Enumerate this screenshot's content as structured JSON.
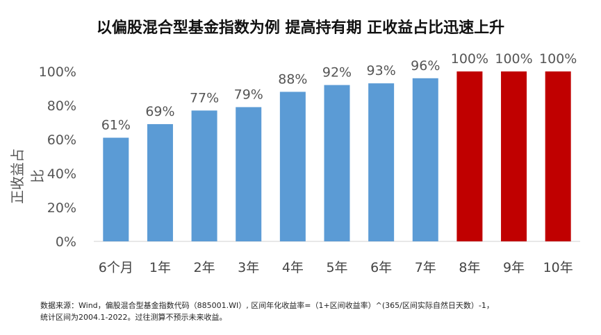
{
  "chart_data": {
    "type": "bar",
    "title": "以偏股混合型基金指数为例 提高持有期 正收益占比迅速上升",
    "xlabel": "",
    "ylabel": "正收益占比",
    "ylim": [
      0,
      100
    ],
    "yticks": [
      "0%",
      "20%",
      "40%",
      "60%",
      "80%",
      "100%"
    ],
    "grid": false,
    "categories": [
      "6个月",
      "1年",
      "2年",
      "3年",
      "4年",
      "5年",
      "6年",
      "7年",
      "8年",
      "9年",
      "10年"
    ],
    "values": [
      61,
      69,
      77,
      79,
      88,
      92,
      93,
      96,
      100,
      100,
      100
    ],
    "data_labels": [
      "61%",
      "69%",
      "77%",
      "79%",
      "88%",
      "92%",
      "93%",
      "96%",
      "100%",
      "100%",
      "100%"
    ],
    "colors": {
      "default": "#5b9bd5",
      "highlight": "#c00000"
    },
    "highlight_categories": [
      "8年",
      "9年",
      "10年"
    ]
  },
  "footnote": [
    "数据来源：Wind，偏股混合型基金指数代码（885001.WI）, 区间年化收益率=（1+区间收益率）^(365/区间实际自然日天数）-1，",
    "统计区间为2004.1-2022。过往测算不预示未来收益。"
  ]
}
